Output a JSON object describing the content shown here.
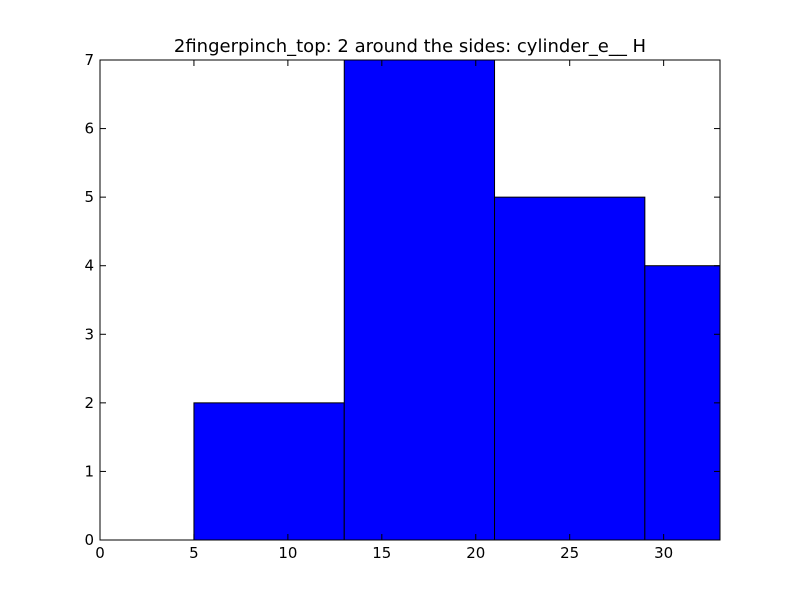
{
  "chart_data": {
    "type": "bar",
    "title": "2fingerpinch_top: 2 around the sides: cylinder_e__ H",
    "xlabel": "",
    "ylabel": "",
    "xlim": [
      0,
      33
    ],
    "ylim": [
      0,
      7
    ],
    "grid": false,
    "bins": [
      {
        "x0": 0,
        "x1": 5,
        "value": 0
      },
      {
        "x0": 5,
        "x1": 13,
        "value": 2
      },
      {
        "x0": 13,
        "x1": 21,
        "value": 7
      },
      {
        "x0": 21,
        "x1": 29,
        "value": 5
      },
      {
        "x0": 29,
        "x1": 33,
        "value": 4
      }
    ],
    "xticks": [
      0,
      5,
      10,
      15,
      20,
      25,
      30
    ],
    "yticks": [
      0,
      1,
      2,
      3,
      4,
      5,
      6,
      7
    ],
    "bar_color": "#0000ff",
    "edge_color": "#000000"
  }
}
